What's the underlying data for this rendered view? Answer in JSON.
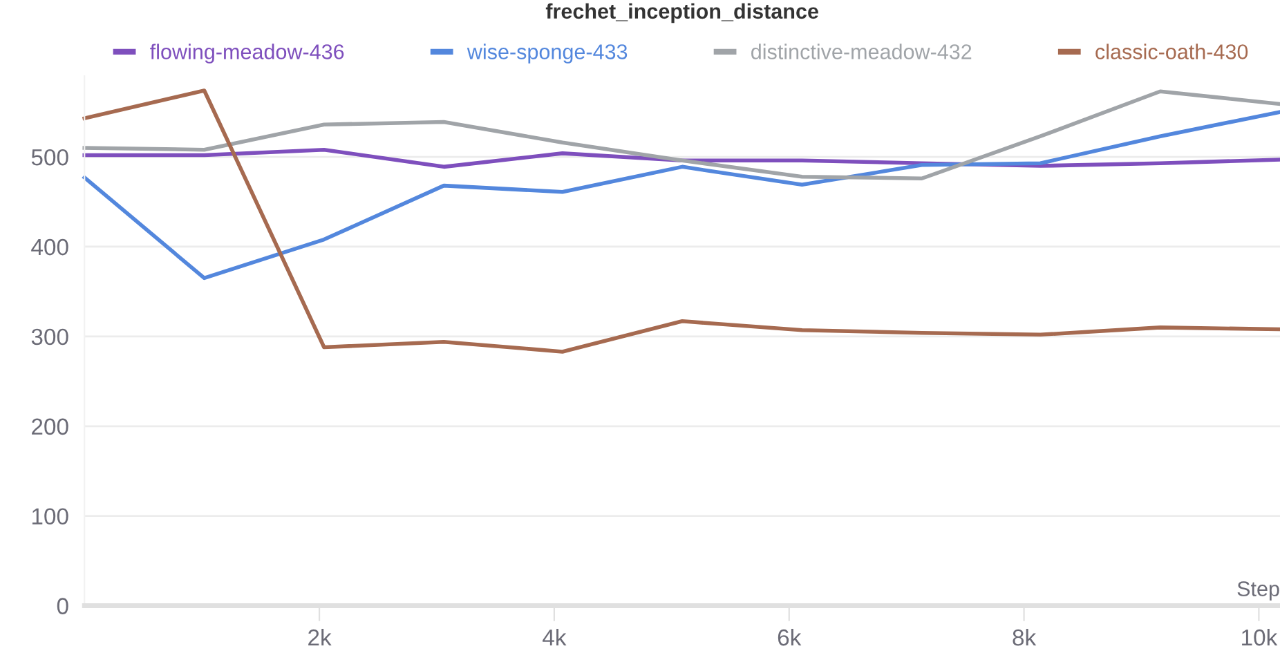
{
  "chart_data": {
    "type": "line",
    "title": "frechet_inception_distance",
    "xlabel": "Step",
    "x": [
      0,
      1020,
      2040,
      3060,
      4070,
      5090,
      6110,
      7130,
      8140,
      9160,
      10180
    ],
    "series": [
      {
        "name": "flowing-meadow-436",
        "color": "#7e4fbd",
        "values": [
          502,
          502,
          508,
          489,
          504,
          496,
          496,
          493,
          490,
          493,
          497
        ]
      },
      {
        "name": "wise-sponge-433",
        "color": "#5387dd",
        "values": [
          477,
          365,
          408,
          468,
          461,
          489,
          469,
          491,
          493,
          523,
          550
        ]
      },
      {
        "name": "distinctive-meadow-432",
        "color": "#a0a4a8",
        "values": [
          510,
          508,
          536,
          539,
          516,
          496,
          478,
          476,
          523,
          573,
          559
        ]
      },
      {
        "name": "classic-oath-430",
        "color": "#a66a50",
        "values": [
          543,
          574,
          288,
          294,
          283,
          317,
          307,
          304,
          302,
          310,
          308
        ]
      }
    ],
    "xlim": [
      0,
      10180
    ],
    "ylim": [
      0,
      590
    ],
    "xticks": [
      {
        "value": 2000,
        "label": "2k"
      },
      {
        "value": 4000,
        "label": "4k"
      },
      {
        "value": 6000,
        "label": "6k"
      },
      {
        "value": 8000,
        "label": "8k"
      },
      {
        "value": 10000,
        "label": "10k"
      }
    ],
    "yticks": [
      0,
      100,
      200,
      300,
      400,
      500
    ],
    "grid": "y",
    "legend": "top",
    "marker": "none",
    "line_style": "solid"
  }
}
